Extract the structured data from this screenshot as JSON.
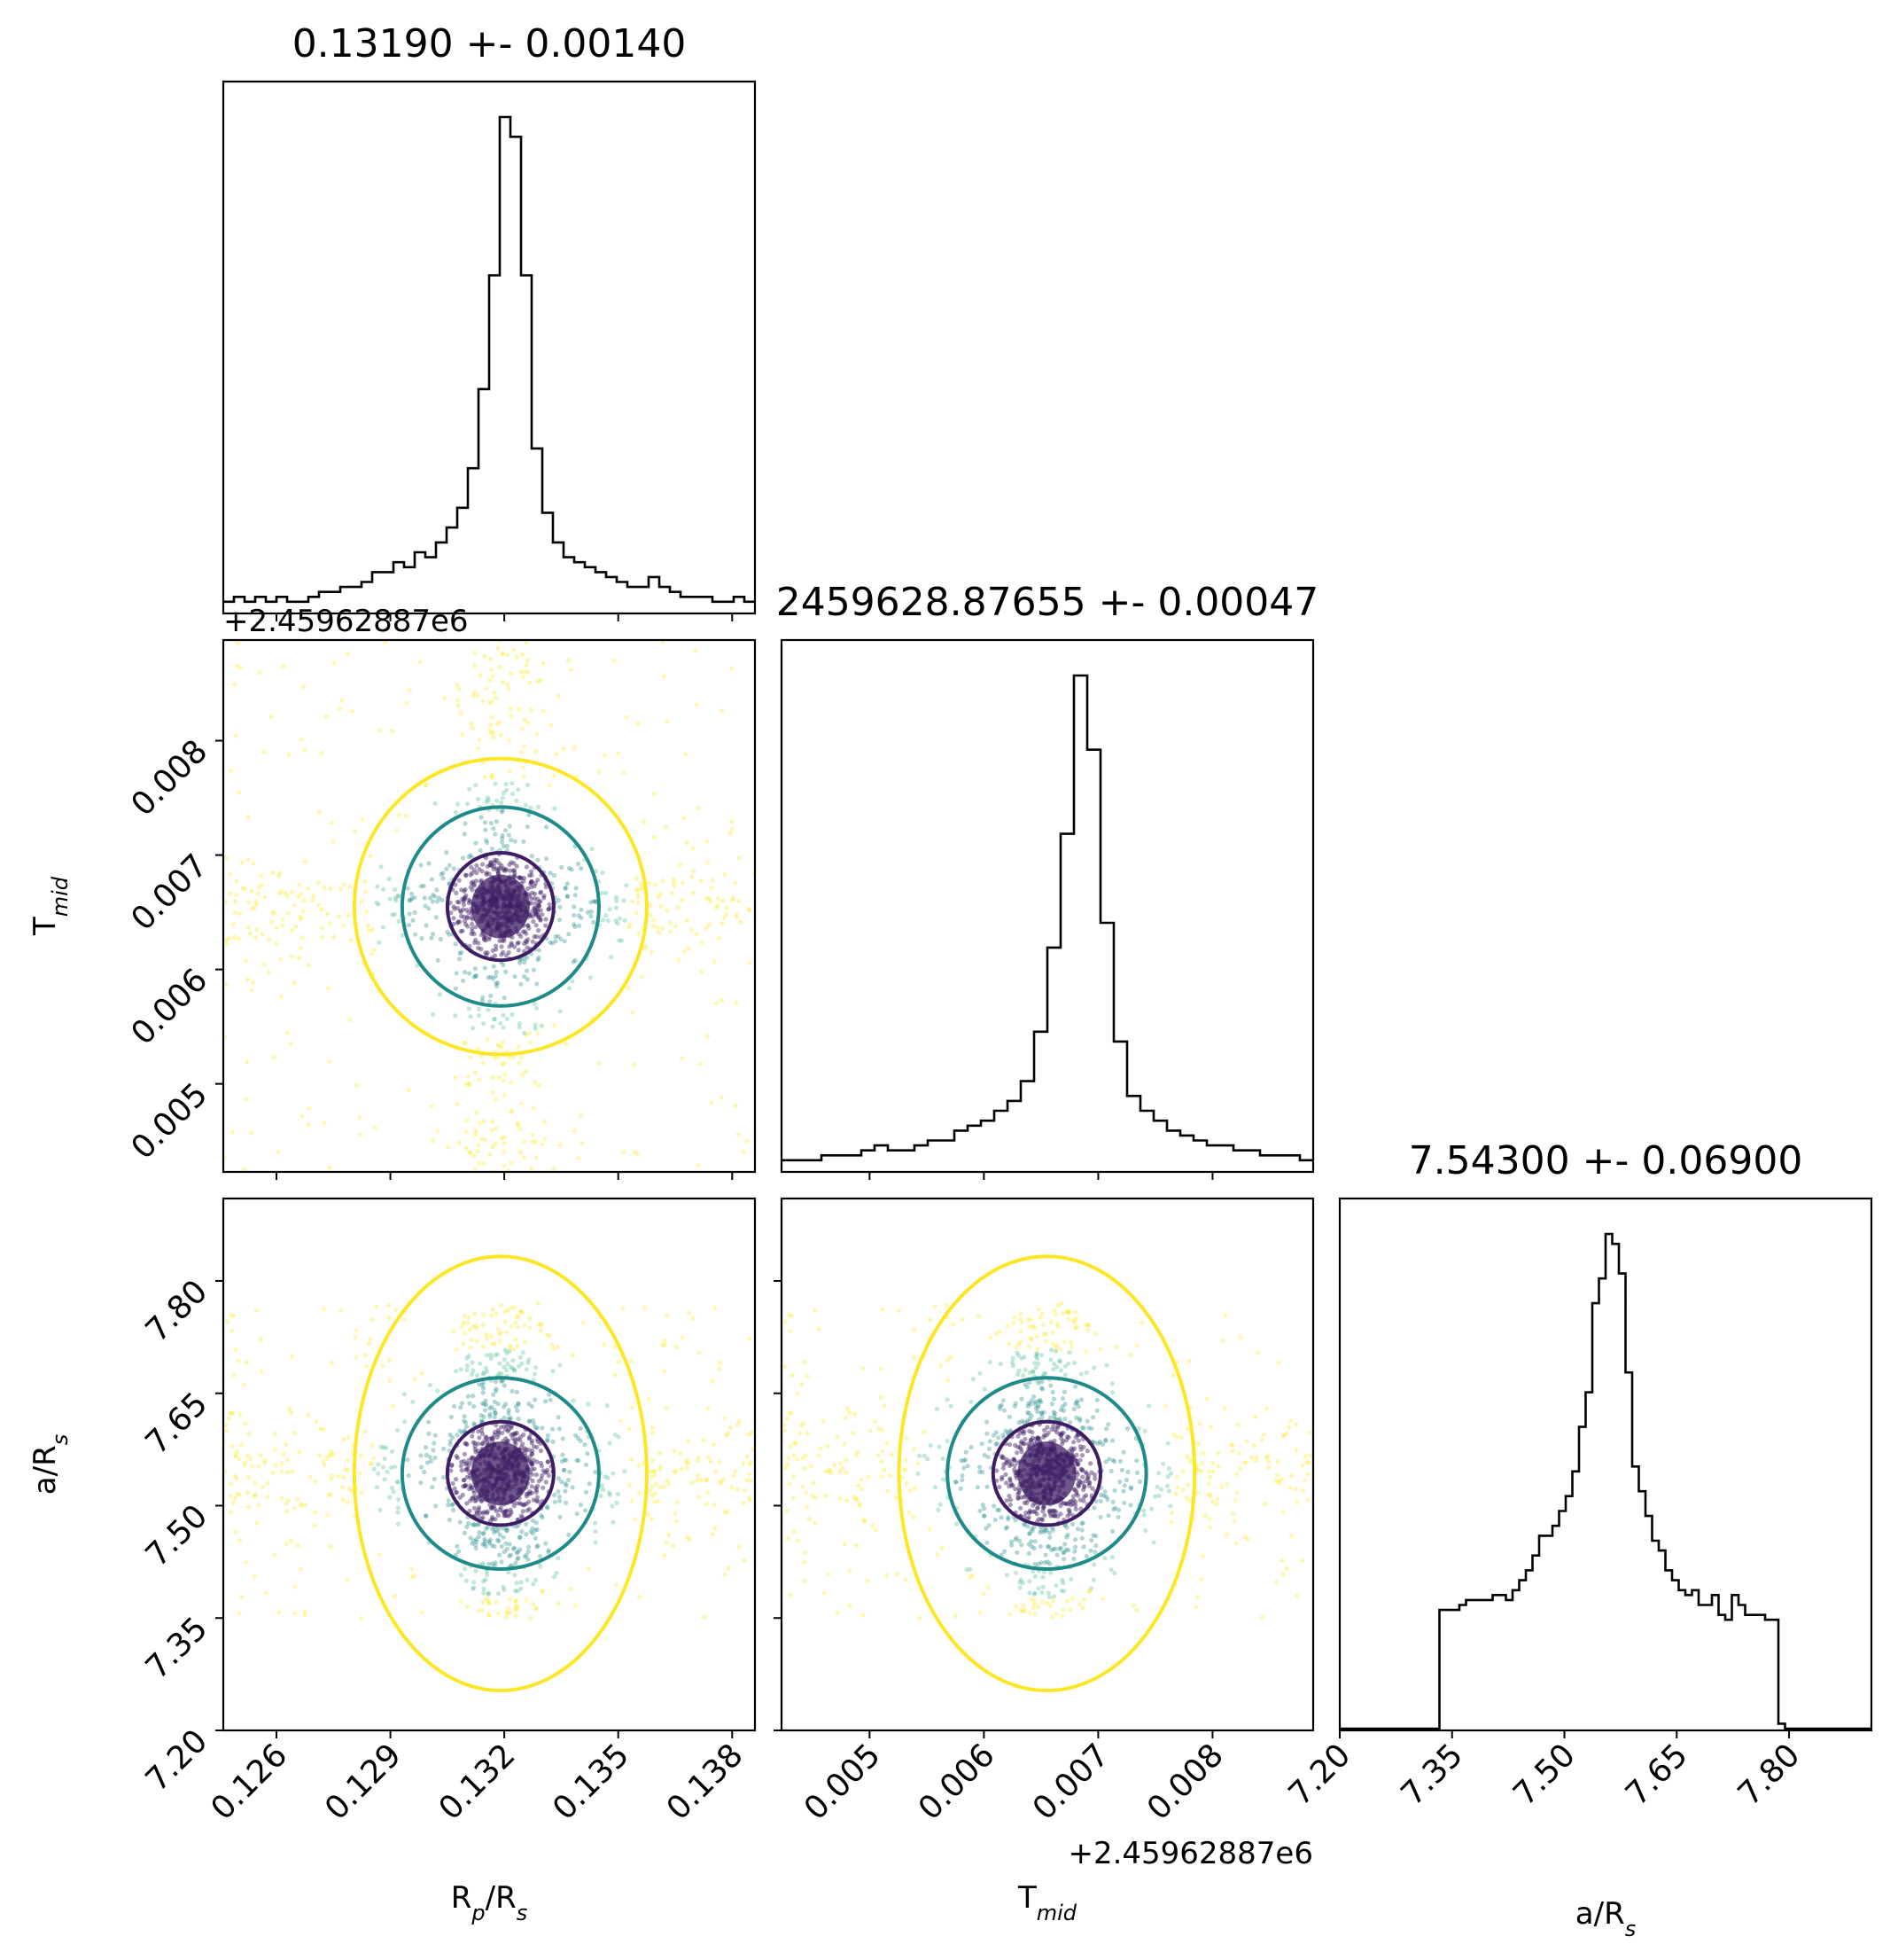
{
  "chart_data": {
    "type": "scatter",
    "kind": "corner-plot",
    "parameters": [
      {
        "key": "rp_rs",
        "title": "0.13190 +- 0.00140",
        "label_main": "R",
        "label_sub1": "p",
        "label_mid": "/R",
        "label_sub2": "s",
        "range": [
          0.1246,
          0.1386
        ],
        "ticks": [
          "0.126",
          "0.129",
          "0.132",
          "0.135",
          "0.138"
        ],
        "tick_values": [
          0.126,
          0.129,
          0.132,
          0.135,
          0.138
        ],
        "offset_text": "",
        "hist_values": [
          2,
          3,
          2,
          3,
          2,
          3,
          2,
          2,
          3,
          4,
          4,
          5,
          5,
          6,
          8,
          8,
          10,
          9,
          12,
          11,
          14,
          17,
          21,
          29,
          45,
          68,
          100,
          96,
          68,
          33,
          20,
          14,
          11,
          10,
          9,
          8,
          7,
          6,
          5,
          5,
          7,
          5,
          4,
          3,
          3,
          3,
          2,
          2,
          3,
          2
        ],
        "median": 0.1319,
        "sigma": 0.0014
      },
      {
        "key": "tmid",
        "title": "2459628.87655 +- 0.00047",
        "label_main": "T",
        "label_sub1": "mid",
        "label_mid": "",
        "label_sub2": "",
        "range": [
          0.00423,
          0.00888
        ],
        "ticks": [
          "0.005",
          "0.006",
          "0.007",
          "0.008"
        ],
        "tick_values": [
          0.005,
          0.006,
          0.007,
          0.008
        ],
        "offset_text": "+2.45962887e6",
        "hist_values": [
          2,
          2,
          2,
          3,
          3,
          3,
          4,
          5,
          4,
          4,
          5,
          6,
          6,
          8,
          9,
          10,
          12,
          14,
          18,
          28,
          45,
          68,
          100,
          85,
          50,
          26,
          15,
          12,
          10,
          8,
          7,
          6,
          5,
          5,
          4,
          4,
          3,
          3,
          3,
          2
        ],
        "median": 0.00655,
        "sigma": 0.00047
      },
      {
        "key": "a_rs",
        "title": "7.54300 +- 0.06900",
        "label_main": "a/R",
        "label_sub1": "s",
        "label_mid": "",
        "label_sub2": "",
        "range": [
          7.2,
          7.91
        ],
        "ticks": [
          "7.20",
          "7.35",
          "7.50",
          "7.65",
          "7.80"
        ],
        "tick_values": [
          7.2,
          7.35,
          7.5,
          7.65,
          7.8
        ],
        "offset_text": "",
        "hist_values": [
          0,
          0,
          0,
          0,
          0,
          0,
          0,
          0,
          0,
          0,
          0,
          0,
          0,
          0,
          0,
          24,
          24,
          24,
          25,
          26,
          26,
          26,
          26,
          27,
          27,
          26,
          28,
          30,
          32,
          35,
          39,
          39,
          41,
          44,
          47,
          52,
          61,
          68,
          86,
          91,
          100,
          98,
          92,
          72,
          53,
          48,
          43,
          38,
          36,
          32,
          30,
          28,
          27,
          28,
          25,
          25,
          27,
          23,
          22,
          27,
          25,
          23,
          23,
          23,
          22,
          22,
          1,
          0,
          0,
          0,
          0,
          0,
          0,
          0,
          0,
          0,
          0,
          0,
          0,
          0
        ],
        "median": 7.543,
        "sigma": 0.069
      }
    ],
    "contour_levels_sigma": [
      1,
      2,
      3
    ],
    "colors": {
      "inner": "#3e1d64",
      "middle": "#1f8a8a",
      "outer": "#fde725",
      "scatter_mid": "#35b779",
      "axes": "#000000"
    }
  }
}
